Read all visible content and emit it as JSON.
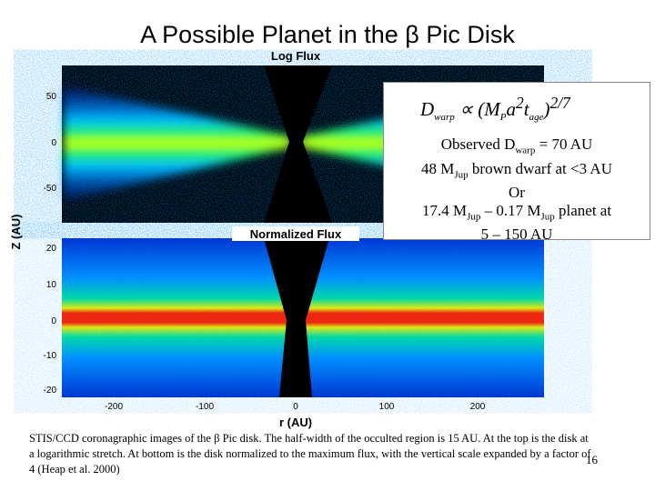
{
  "slide": {
    "title": "A Possible Planet in the β Pic Disk",
    "figure": {
      "top_panel_title": "Log Flux",
      "bottom_panel_title": "Normalized Flux",
      "y_axis_label": "Z (AU)",
      "x_axis_label": "r (AU)",
      "top_y_ticks": [
        50,
        0,
        -50
      ],
      "bottom_y_ticks": [
        20,
        10,
        0,
        -10,
        -20
      ],
      "x_ticks": [
        -200,
        -100,
        0,
        100,
        200
      ]
    },
    "box": {
      "formula": [
        "D",
        "warp",
        "∝ (M",
        "P",
        "a",
        "2",
        "t",
        "age",
        ")",
        "2/7"
      ],
      "lines": [
        [
          "Observed D",
          "warp",
          " = 70 AU"
        ],
        [
          "48 M",
          "Jup",
          " brown dwarf at <3 AU"
        ],
        [
          "Or"
        ],
        [
          "17.4 M",
          "Jup",
          " – 0.17 M",
          "Jup",
          " planet at"
        ],
        [
          "5 – 150 AU"
        ]
      ]
    },
    "caption": "STIS/CCD coronagraphic images of the β Pic disk. The half-width of the occulted region is 15 AU. At the top is the disk at a logarithmic stretch. At bottom is the disk normalized to the maximum flux, with the vertical scale expanded by a factor of 4 (Heap et al. 2000)",
    "page_number": "16"
  }
}
